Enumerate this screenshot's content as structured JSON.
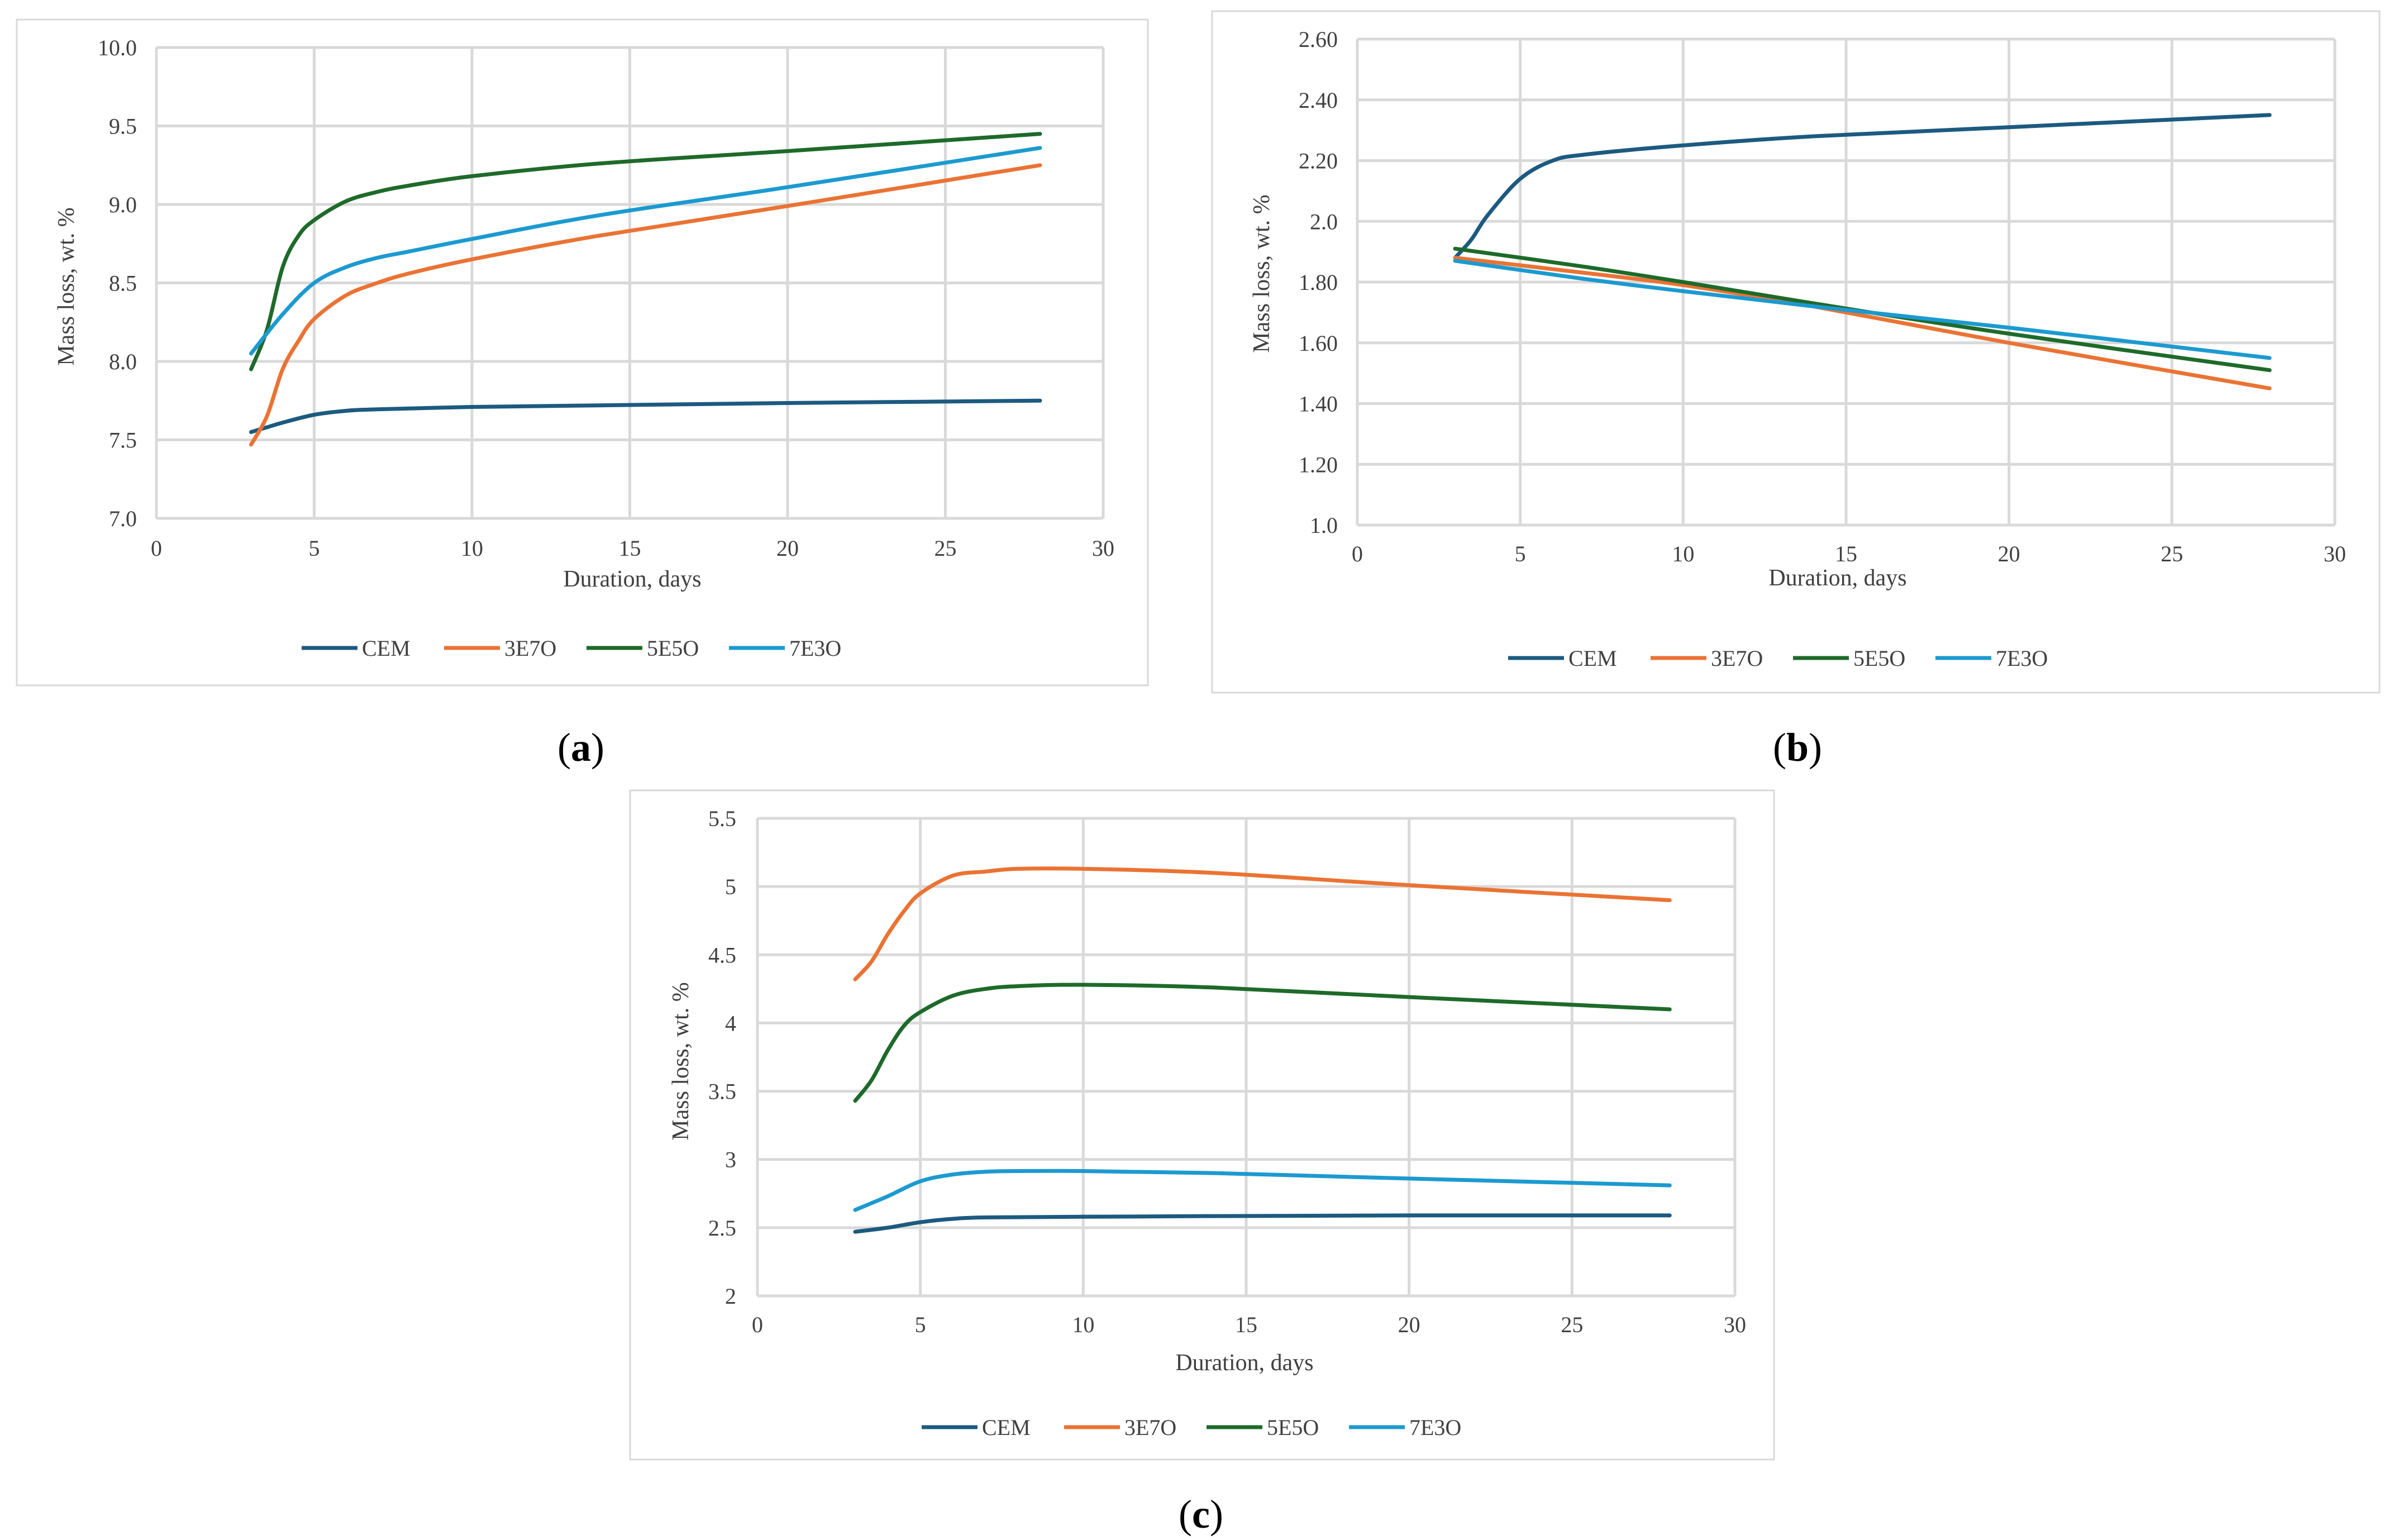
{
  "colors": {
    "CEM": "#1c5a80",
    "3E7O": "#ea7334",
    "5E5O": "#1e6a2a",
    "7E3O": "#1c9ad0"
  },
  "chart_data": [
    {
      "panel": "a",
      "type": "line",
      "xlabel": "Duration, days",
      "ylabel": "Mass loss, wt. %",
      "xlim": [
        0,
        30
      ],
      "ylim": [
        7.0,
        10.0
      ],
      "xticks": [
        "0",
        "5",
        "10",
        "15",
        "20",
        "25",
        "30"
      ],
      "yticks": [
        "7.0",
        "7.5",
        "8.0",
        "8.5",
        "9.0",
        "9.5",
        "10.0"
      ],
      "grid": true,
      "legend_position": "bottom",
      "series": [
        {
          "name": "CEM",
          "x": [
            3,
            3.5,
            4,
            5,
            6,
            7,
            10,
            14,
            20,
            28
          ],
          "y": [
            7.55,
            7.58,
            7.61,
            7.66,
            7.685,
            7.695,
            7.71,
            7.72,
            7.735,
            7.75
          ]
        },
        {
          "name": "3E7O",
          "x": [
            3,
            3.5,
            4,
            4.5,
            5,
            6,
            7,
            8,
            10,
            14,
            20,
            28
          ],
          "y": [
            7.47,
            7.65,
            7.95,
            8.13,
            8.27,
            8.42,
            8.5,
            8.56,
            8.65,
            8.8,
            8.99,
            9.25
          ]
        },
        {
          "name": "5E5O",
          "x": [
            3,
            3.5,
            4,
            4.5,
            5,
            6,
            7,
            8,
            10,
            14,
            20,
            28
          ],
          "y": [
            7.95,
            8.2,
            8.6,
            8.8,
            8.9,
            9.02,
            9.08,
            9.12,
            9.18,
            9.26,
            9.34,
            9.45
          ]
        },
        {
          "name": "7E3O",
          "x": [
            3,
            4,
            5,
            6,
            7,
            8,
            10,
            14,
            20,
            28
          ],
          "y": [
            8.05,
            8.3,
            8.5,
            8.6,
            8.66,
            8.7,
            8.78,
            8.93,
            9.11,
            9.36
          ]
        }
      ]
    },
    {
      "panel": "b",
      "type": "line",
      "xlabel": "Duration, days",
      "ylabel": "Mass loss, wt. %",
      "xlim": [
        0,
        30
      ],
      "ylim": [
        1.0,
        2.6
      ],
      "xticks": [
        "0",
        "5",
        "10",
        "15",
        "20",
        "25",
        "30"
      ],
      "yticks": [
        "1.0",
        "1.20",
        "1.40",
        "1.60",
        "1.80",
        "2.0",
        "2.20",
        "2.40",
        "2.60"
      ],
      "grid": true,
      "legend_position": "bottom",
      "series": [
        {
          "name": "CEM",
          "x": [
            3,
            3.5,
            4,
            5,
            6,
            7,
            10,
            14,
            20,
            28
          ],
          "y": [
            1.88,
            1.94,
            2.02,
            2.14,
            2.2,
            2.22,
            2.25,
            2.28,
            2.31,
            2.35
          ]
        },
        {
          "name": "3E7O",
          "x": [
            3,
            7,
            10,
            14,
            20,
            28
          ],
          "y": [
            1.88,
            1.83,
            1.79,
            1.72,
            1.6,
            1.45
          ]
        },
        {
          "name": "5E5O",
          "x": [
            3,
            7,
            10,
            14,
            20,
            28
          ],
          "y": [
            1.91,
            1.85,
            1.8,
            1.73,
            1.63,
            1.51
          ]
        },
        {
          "name": "7E3O",
          "x": [
            3,
            7,
            10,
            14,
            20,
            28
          ],
          "y": [
            1.87,
            1.81,
            1.77,
            1.72,
            1.65,
            1.55
          ]
        }
      ]
    },
    {
      "panel": "c",
      "type": "line",
      "xlabel": "Duration, days",
      "ylabel": "Mass loss, wt. %",
      "xlim": [
        0,
        30
      ],
      "ylim": [
        2.0,
        5.5
      ],
      "xticks": [
        "0",
        "5",
        "10",
        "15",
        "20",
        "25",
        "30"
      ],
      "yticks": [
        "2",
        "2.5",
        "3",
        "3.5",
        "4",
        "4.5",
        "5",
        "5.5"
      ],
      "grid": true,
      "legend_position": "bottom",
      "series": [
        {
          "name": "CEM",
          "x": [
            3,
            4,
            5,
            6,
            7,
            10,
            14,
            20,
            28
          ],
          "y": [
            2.47,
            2.5,
            2.54,
            2.565,
            2.575,
            2.58,
            2.585,
            2.59,
            2.59
          ]
        },
        {
          "name": "3E7O",
          "x": [
            3,
            3.5,
            4,
            4.5,
            5,
            6,
            7,
            8,
            10,
            14,
            20,
            28
          ],
          "y": [
            4.32,
            4.45,
            4.65,
            4.82,
            4.95,
            5.08,
            5.11,
            5.13,
            5.13,
            5.1,
            5.01,
            4.9
          ]
        },
        {
          "name": "5E5O",
          "x": [
            3,
            3.5,
            4,
            4.5,
            5,
            6,
            7,
            8,
            10,
            14,
            20,
            28
          ],
          "y": [
            3.43,
            3.58,
            3.8,
            3.98,
            4.08,
            4.2,
            4.25,
            4.27,
            4.28,
            4.26,
            4.19,
            4.1
          ]
        },
        {
          "name": "7E3O",
          "x": [
            3,
            4,
            5,
            6,
            7,
            8,
            10,
            14,
            20,
            28
          ],
          "y": [
            2.63,
            2.73,
            2.84,
            2.89,
            2.91,
            2.915,
            2.915,
            2.9,
            2.86,
            2.81
          ]
        }
      ]
    }
  ]
}
